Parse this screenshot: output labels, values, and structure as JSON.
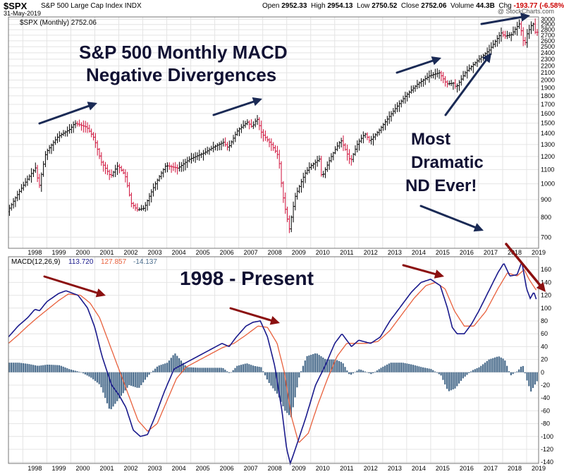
{
  "header": {
    "symbol": "$SPX",
    "name": "S&P 500 Large Cap Index  INDX",
    "date": "31-May-2019",
    "quote_open_label": "Open",
    "quote_open": "2952.33",
    "quote_high_label": "High",
    "quote_high": "2954.13",
    "quote_low_label": "Low",
    "quote_low": "2750.52",
    "quote_close_label": "Close",
    "quote_close": "2752.06",
    "quote_volume_label": "Volume",
    "quote_volume": "44.3B",
    "quote_chg_label": "Chg",
    "quote_chg": "-193.77 (-6.58%)",
    "watermark": "@ StockCharts.com"
  },
  "colors": {
    "price_up": "#000000",
    "price_down": "#d0103a",
    "macd_line": "#1a1a8c",
    "signal_line": "#e8603c",
    "histogram": "#4a6c8c",
    "arrow_blue": "#1a2a55",
    "arrow_red": "#8b1010",
    "grid": "#e4e4e4"
  },
  "chart_data": [
    {
      "type": "candlestick",
      "legend": "$SPX (Monthly) 2752.06",
      "y_scale": "log",
      "ylim": [
        650,
        3050
      ],
      "y_ticks": [
        700,
        800,
        900,
        1000,
        1100,
        1200,
        1300,
        1400,
        1500,
        1600,
        1700,
        1800,
        1900,
        2000,
        2100,
        2200,
        2300,
        2400,
        2500,
        2600,
        2700,
        2800,
        2900,
        3000
      ],
      "x_labels": [
        "1998",
        "1999",
        "2000",
        "2001",
        "2002",
        "2003",
        "2004",
        "2005",
        "2006",
        "2007",
        "2008",
        "2009",
        "2010",
        "2011",
        "2012",
        "2013",
        "2014",
        "2015",
        "2016",
        "2017",
        "2018",
        "2019"
      ],
      "xlim": [
        1997.4,
        2019.5
      ],
      "anchors": [
        [
          1997.4,
          830
        ],
        [
          1998.0,
          975
        ],
        [
          1998.6,
          1120
        ],
        [
          1998.7,
          960
        ],
        [
          1999.0,
          1230
        ],
        [
          1999.5,
          1370
        ],
        [
          2000.0,
          1440
        ],
        [
          2000.2,
          1500
        ],
        [
          2000.7,
          1460
        ],
        [
          2001.0,
          1360
        ],
        [
          2001.3,
          1160
        ],
        [
          2001.7,
          1050
        ],
        [
          2002.0,
          1130
        ],
        [
          2002.3,
          1060
        ],
        [
          2002.55,
          880
        ],
        [
          2002.8,
          840
        ],
        [
          2003.1,
          850
        ],
        [
          2003.5,
          980
        ],
        [
          2004.0,
          1130
        ],
        [
          2004.5,
          1110
        ],
        [
          2005.0,
          1180
        ],
        [
          2005.6,
          1230
        ],
        [
          2006.0,
          1280
        ],
        [
          2006.4,
          1320
        ],
        [
          2006.6,
          1270
        ],
        [
          2007.0,
          1430
        ],
        [
          2007.4,
          1510
        ],
        [
          2007.6,
          1460
        ],
        [
          2007.8,
          1550
        ],
        [
          2008.0,
          1400
        ],
        [
          2008.4,
          1300
        ],
        [
          2008.7,
          1200
        ],
        [
          2008.85,
          950
        ],
        [
          2009.0,
          830
        ],
        [
          2009.15,
          740
        ],
        [
          2009.4,
          920
        ],
        [
          2009.8,
          1070
        ],
        [
          2010.0,
          1120
        ],
        [
          2010.4,
          1180
        ],
        [
          2010.5,
          1040
        ],
        [
          2010.9,
          1200
        ],
        [
          2011.3,
          1340
        ],
        [
          2011.7,
          1160
        ],
        [
          2012.0,
          1310
        ],
        [
          2012.3,
          1400
        ],
        [
          2012.5,
          1330
        ],
        [
          2012.9,
          1430
        ],
        [
          2013.5,
          1630
        ],
        [
          2014.0,
          1800
        ],
        [
          2014.5,
          1950
        ],
        [
          2015.0,
          2060
        ],
        [
          2015.4,
          2100
        ],
        [
          2015.7,
          1950
        ],
        [
          2016.0,
          1960
        ],
        [
          2016.1,
          1900
        ],
        [
          2016.5,
          2110
        ],
        [
          2017.0,
          2280
        ],
        [
          2017.5,
          2450
        ],
        [
          2018.0,
          2750
        ],
        [
          2018.1,
          2680
        ],
        [
          2018.4,
          2710
        ],
        [
          2018.75,
          2920
        ],
        [
          2018.95,
          2500
        ],
        [
          2019.05,
          2710
        ],
        [
          2019.3,
          2940
        ],
        [
          2019.4,
          2752
        ]
      ]
    },
    {
      "type": "line+histogram",
      "legend_prefix": "MACD(12,26,9)",
      "legend_macd": "113.720",
      "legend_signal": "127.857",
      "legend_hist": "-14.137",
      "ylim": [
        -142,
        180
      ],
      "y_ticks": [
        -140,
        -120,
        -100,
        -80,
        -60,
        -40,
        -20,
        0,
        20,
        40,
        60,
        80,
        100,
        120,
        140,
        160
      ],
      "x_labels": [
        "1998",
        "1999",
        "2000",
        "2001",
        "2002",
        "2003",
        "2004",
        "2005",
        "2006",
        "2007",
        "2008",
        "2009",
        "2010",
        "2011",
        "2012",
        "2013",
        "2014",
        "2015",
        "2016",
        "2017",
        "2018",
        "2019"
      ],
      "xlim": [
        1997.4,
        2019.5
      ],
      "macd": [
        [
          1997.4,
          55
        ],
        [
          1997.8,
          72
        ],
        [
          1998.2,
          85
        ],
        [
          1998.5,
          98
        ],
        [
          1998.7,
          96
        ],
        [
          1999.0,
          110
        ],
        [
          1999.5,
          123
        ],
        [
          1999.8,
          127
        ],
        [
          2000.3,
          120
        ],
        [
          2000.7,
          100
        ],
        [
          2001.0,
          70
        ],
        [
          2001.3,
          25
        ],
        [
          2001.7,
          -20
        ],
        [
          2002.0,
          -35
        ],
        [
          2002.3,
          -55
        ],
        [
          2002.6,
          -90
        ],
        [
          2002.9,
          -100
        ],
        [
          2003.2,
          -97
        ],
        [
          2003.5,
          -70
        ],
        [
          2003.9,
          -30
        ],
        [
          2004.3,
          5
        ],
        [
          2004.8,
          15
        ],
        [
          2005.3,
          25
        ],
        [
          2005.8,
          35
        ],
        [
          2006.3,
          45
        ],
        [
          2006.6,
          40
        ],
        [
          2006.9,
          55
        ],
        [
          2007.3,
          72
        ],
        [
          2007.6,
          78
        ],
        [
          2007.9,
          80
        ],
        [
          2008.2,
          55
        ],
        [
          2008.5,
          10
        ],
        [
          2008.8,
          -60
        ],
        [
          2009.0,
          -120
        ],
        [
          2009.15,
          -142
        ],
        [
          2009.4,
          -115
        ],
        [
          2009.8,
          -70
        ],
        [
          2010.2,
          -20
        ],
        [
          2010.6,
          10
        ],
        [
          2011.0,
          45
        ],
        [
          2011.3,
          60
        ],
        [
          2011.7,
          40
        ],
        [
          2012.0,
          50
        ],
        [
          2012.5,
          45
        ],
        [
          2012.9,
          55
        ],
        [
          2013.3,
          80
        ],
        [
          2013.8,
          105
        ],
        [
          2014.2,
          125
        ],
        [
          2014.6,
          140
        ],
        [
          2015.0,
          145
        ],
        [
          2015.4,
          135
        ],
        [
          2015.7,
          100
        ],
        [
          2015.9,
          70
        ],
        [
          2016.1,
          60
        ],
        [
          2016.4,
          60
        ],
        [
          2016.7,
          75
        ],
        [
          2017.0,
          95
        ],
        [
          2017.4,
          125
        ],
        [
          2017.8,
          155
        ],
        [
          2018.05,
          170
        ],
        [
          2018.3,
          150
        ],
        [
          2018.6,
          152
        ],
        [
          2018.8,
          172
        ],
        [
          2019.0,
          130
        ],
        [
          2019.15,
          115
        ],
        [
          2019.3,
          125
        ],
        [
          2019.4,
          114
        ]
      ],
      "signal": [
        [
          1997.4,
          45
        ],
        [
          1997.8,
          58
        ],
        [
          1998.2,
          72
        ],
        [
          1998.6,
          85
        ],
        [
          1999.0,
          97
        ],
        [
          1999.5,
          112
        ],
        [
          1999.9,
          122
        ],
        [
          2000.4,
          120
        ],
        [
          2000.8,
          108
        ],
        [
          2001.2,
          85
        ],
        [
          2001.6,
          45
        ],
        [
          2002.0,
          5
        ],
        [
          2002.4,
          -35
        ],
        [
          2002.8,
          -75
        ],
        [
          2003.2,
          -92
        ],
        [
          2003.6,
          -80
        ],
        [
          2004.0,
          -45
        ],
        [
          2004.4,
          -10
        ],
        [
          2004.8,
          8
        ],
        [
          2005.3,
          18
        ],
        [
          2005.8,
          28
        ],
        [
          2006.3,
          38
        ],
        [
          2006.8,
          45
        ],
        [
          2007.3,
          58
        ],
        [
          2007.8,
          72
        ],
        [
          2008.2,
          70
        ],
        [
          2008.6,
          45
        ],
        [
          2008.9,
          0
        ],
        [
          2009.2,
          -70
        ],
        [
          2009.5,
          -110
        ],
        [
          2009.9,
          -95
        ],
        [
          2010.3,
          -50
        ],
        [
          2010.7,
          -10
        ],
        [
          2011.1,
          25
        ],
        [
          2011.5,
          45
        ],
        [
          2011.9,
          45
        ],
        [
          2012.3,
          45
        ],
        [
          2012.8,
          48
        ],
        [
          2013.3,
          65
        ],
        [
          2013.8,
          90
        ],
        [
          2014.3,
          115
        ],
        [
          2014.8,
          135
        ],
        [
          2015.2,
          140
        ],
        [
          2015.6,
          130
        ],
        [
          2016.0,
          95
        ],
        [
          2016.4,
          72
        ],
        [
          2016.8,
          72
        ],
        [
          2017.3,
          95
        ],
        [
          2017.8,
          130
        ],
        [
          2018.2,
          155
        ],
        [
          2018.6,
          150
        ],
        [
          2018.9,
          160
        ],
        [
          2019.1,
          145
        ],
        [
          2019.4,
          128
        ]
      ],
      "histogram": [
        [
          1997.4,
          15
        ],
        [
          1997.8,
          15
        ],
        [
          1998.2,
          13
        ],
        [
          1998.6,
          10
        ],
        [
          1999.0,
          12
        ],
        [
          1999.5,
          11
        ],
        [
          1999.9,
          5
        ],
        [
          2000.4,
          0
        ],
        [
          2000.8,
          -8
        ],
        [
          2001.2,
          -20
        ],
        [
          2001.6,
          -60
        ],
        [
          2002.0,
          -40
        ],
        [
          2002.4,
          -20
        ],
        [
          2002.8,
          -25
        ],
        [
          2003.2,
          -5
        ],
        [
          2003.6,
          10
        ],
        [
          2004.0,
          15
        ],
        [
          2004.3,
          30
        ],
        [
          2004.8,
          8
        ],
        [
          2005.3,
          7
        ],
        [
          2005.8,
          7
        ],
        [
          2006.3,
          7
        ],
        [
          2006.6,
          -2
        ],
        [
          2006.9,
          10
        ],
        [
          2007.3,
          14
        ],
        [
          2007.6,
          10
        ],
        [
          2007.9,
          8
        ],
        [
          2008.2,
          -15
        ],
        [
          2008.6,
          -35
        ],
        [
          2008.9,
          -60
        ],
        [
          2009.15,
          -70
        ],
        [
          2009.5,
          -5
        ],
        [
          2009.8,
          25
        ],
        [
          2010.2,
          30
        ],
        [
          2010.6,
          20
        ],
        [
          2011.0,
          20
        ],
        [
          2011.3,
          15
        ],
        [
          2011.6,
          -5
        ],
        [
          2012.0,
          5
        ],
        [
          2012.5,
          -3
        ],
        [
          2012.9,
          7
        ],
        [
          2013.3,
          15
        ],
        [
          2013.8,
          15
        ],
        [
          2014.2,
          12
        ],
        [
          2014.6,
          8
        ],
        [
          2015.0,
          5
        ],
        [
          2015.4,
          -5
        ],
        [
          2015.7,
          -30
        ],
        [
          2016.0,
          -25
        ],
        [
          2016.3,
          -10
        ],
        [
          2016.7,
          3
        ],
        [
          2017.0,
          8
        ],
        [
          2017.4,
          20
        ],
        [
          2017.8,
          25
        ],
        [
          2018.05,
          20
        ],
        [
          2018.3,
          -5
        ],
        [
          2018.6,
          2
        ],
        [
          2018.8,
          12
        ],
        [
          2019.0,
          -15
        ],
        [
          2019.15,
          -30
        ],
        [
          2019.3,
          -20
        ],
        [
          2019.4,
          -14
        ]
      ]
    }
  ],
  "annotations": {
    "title_line1": "S&P 500 Monthly MACD",
    "title_line2": "Negative Divergences",
    "note_line1": "Most",
    "note_line2": "Dramatic",
    "note_line3": "ND Ever!",
    "macd_title": "1998 - Present"
  }
}
